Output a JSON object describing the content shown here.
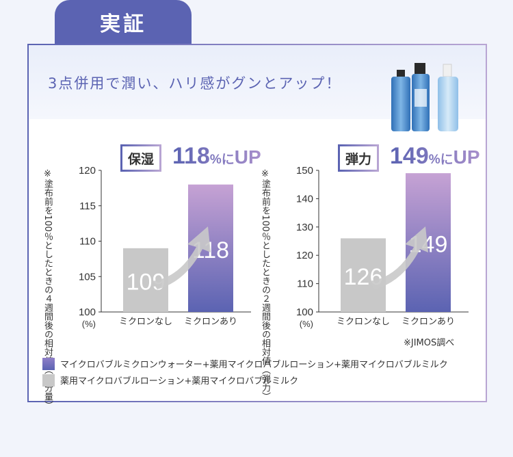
{
  "tab_label": "実証",
  "headline": "3点併用で潤い、ハリ感がグンとアップ！",
  "colors": {
    "accent": "#5b63b2",
    "accent_light": "#b8a5d3",
    "bar_gray": "#c8c8c8"
  },
  "product_image": "three-skincare-bottles",
  "charts": [
    {
      "badge": "保湿",
      "result_value": "118",
      "result_unit": "%",
      "result_suffix": "に",
      "result_up": "UP",
      "y_note": "※塗布前を100％としたときの４週間後の相対値（水分量）",
      "y_unit": "(%)"
    },
    {
      "badge": "弾力",
      "result_value": "149",
      "result_unit": "%",
      "result_suffix": "に",
      "result_up": "UP",
      "y_note": "※塗布前を100％としたときの２週間後の相対値（弾力）",
      "y_unit": "(%)"
    }
  ],
  "chart_data": [
    {
      "type": "bar",
      "categories": [
        "ミクロンなし",
        "ミクロンあり"
      ],
      "values": [
        109,
        118
      ],
      "ylim": [
        100,
        120
      ],
      "yticks": [
        100,
        105,
        110,
        115,
        120
      ],
      "title": "",
      "xlabel": "",
      "ylabel": "※塗布前を100％としたときの４週間後の相対値（水分量）"
    },
    {
      "type": "bar",
      "categories": [
        "ミクロンなし",
        "ミクロンあり"
      ],
      "values": [
        126,
        149
      ],
      "ylim": [
        100,
        150
      ],
      "yticks": [
        100,
        110,
        120,
        130,
        140,
        150
      ],
      "title": "",
      "xlabel": "",
      "ylabel": "※塗布前を100％としたときの２週間後の相対値（弾力）"
    }
  ],
  "footnote": "※JIMOS調べ",
  "legend": [
    {
      "color": "#6a62b8",
      "label": "マイクロバブルミクロンウォーター+薬用マイクロバブルローション+薬用マイクロバブルミルク"
    },
    {
      "color": "#c8c8c8",
      "label": "薬用マイクロバブルローション+薬用マイクロバブルミルク"
    }
  ]
}
